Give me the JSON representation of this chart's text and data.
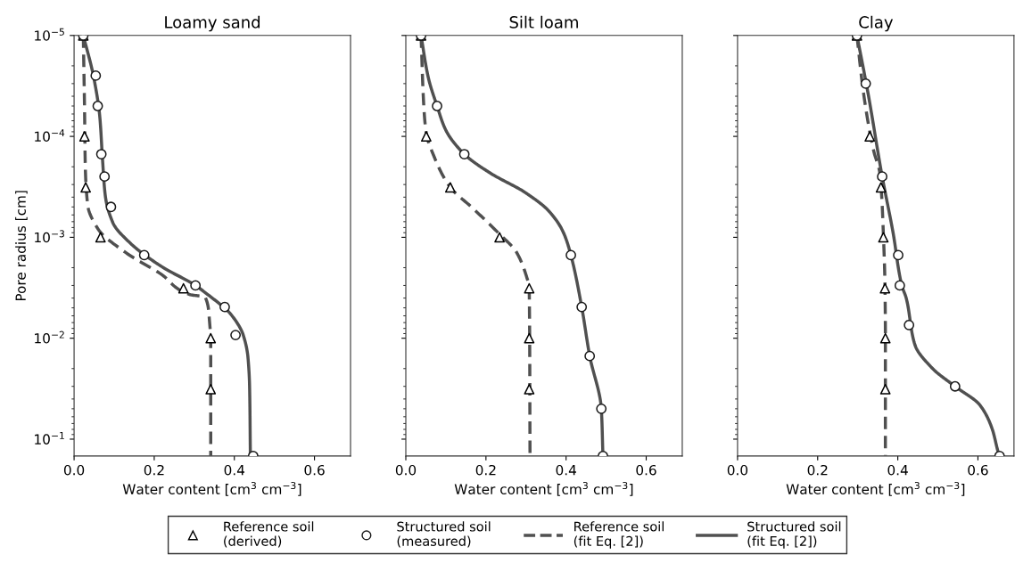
{
  "chart_data": [
    {
      "type": "line",
      "title": "Loamy sand",
      "xlabel": "Water content [cm$^{3}$ cm$^{−3}$]",
      "ylabel": "Pore radius [cm]",
      "log": "y",
      "legend": "bottom",
      "xlim": [
        0,
        0.69
      ],
      "xticks": [
        {
          "value": 0,
          "label": "0.0"
        },
        {
          "value": 0.2,
          "label": "0.2"
        },
        {
          "value": 0.4,
          "label": "0.4"
        },
        {
          "value": 0.6,
          "label": "0.6"
        }
      ],
      "ylim": [
        0.147,
        1e-05
      ],
      "yticks": [
        {
          "value": 1e-05,
          "label": "10$^{−5}$"
        },
        {
          "value": 0.0001,
          "label": "10$^{−4}$"
        },
        {
          "value": 0.001,
          "label": "10$^{−3}$"
        },
        {
          "value": 0.01,
          "label": "10$^{−2}$"
        },
        {
          "value": 0.1,
          "label": "10$^{−1}$"
        }
      ],
      "series": [
        {
          "name": "Reference soil\n(derived)",
          "type": "scatter",
          "marker": "triangle",
          "color": "#000000",
          "x": [
            0.023,
            0.026,
            0.029,
            0.066,
            0.273,
            0.341,
            0.341
          ],
          "values": [
            1e-05,
            0.0001,
            0.00032,
            0.001,
            0.0032,
            0.01,
            0.032
          ]
        },
        {
          "name": "Structured soil\n(measured)",
          "type": "scatter",
          "marker": "circle",
          "color": "#1a1a1a",
          "x": [
            0.023,
            0.054,
            0.059,
            0.068,
            0.076,
            0.092,
            0.175,
            0.303,
            0.376,
            0.403,
            0.447
          ],
          "values": [
            1e-05,
            2.5e-05,
            5e-05,
            0.00015,
            0.00025,
            0.0005,
            0.0015,
            0.003,
            0.0049,
            0.0093,
            0.147
          ]
        },
        {
          "name": "Reference soil\n(fit Eq. [2])",
          "type": "line",
          "line_style": "dashed",
          "color": "#505050",
          "x": [
            0.023,
            0.026,
            0.028,
            0.034,
            0.06,
            0.127,
            0.216,
            0.29,
            0.327,
            0.338,
            0.341,
            0.341
          ],
          "values": [
            1e-05,
            5.1e-05,
            0.0002,
            0.00048,
            0.00083,
            0.0014,
            0.0023,
            0.0037,
            0.0039,
            0.0068,
            0.011,
            0.147
          ]
        },
        {
          "name": "Structured soil\n(fit Eq. [2])",
          "type": "line",
          "line_style": "solid",
          "color": "#505050",
          "x": [
            0.023,
            0.049,
            0.064,
            0.071,
            0.078,
            0.097,
            0.141,
            0.223,
            0.297,
            0.334,
            0.393,
            0.423,
            0.434,
            0.438,
            0.44
          ],
          "values": [
            1e-05,
            2.6e-05,
            6.3e-05,
            0.00017,
            0.00039,
            0.00072,
            0.00115,
            0.002,
            0.0029,
            0.0037,
            0.0059,
            0.0095,
            0.0155,
            0.03,
            0.147
          ]
        }
      ]
    },
    {
      "type": "line",
      "title": "Silt loam",
      "xlabel": "Water content [cm$^{3}$ cm$^{−3}$]",
      "log": "y",
      "tick_labels": "x",
      "xlim": [
        0,
        0.69
      ],
      "xticks": [
        {
          "value": 0,
          "label": "0.0"
        },
        {
          "value": 0.2,
          "label": "0.2"
        },
        {
          "value": 0.4,
          "label": "0.4"
        },
        {
          "value": 0.6,
          "label": "0.6"
        }
      ],
      "ylim": [
        0.147,
        1e-05
      ],
      "yticks": [
        {
          "value": 1e-05,
          "label": null
        },
        {
          "value": 0.0001,
          "label": null
        },
        {
          "value": 0.001,
          "label": null
        },
        {
          "value": 0.01,
          "label": null
        },
        {
          "value": 0.1,
          "label": null
        }
      ],
      "series": [
        {
          "type": "scatter",
          "marker": "triangle",
          "color": "#000000",
          "x": [
            0.038,
            0.051,
            0.111,
            0.234,
            0.308,
            0.308,
            0.308
          ],
          "values": [
            1e-05,
            0.0001,
            0.00032,
            0.001,
            0.0032,
            0.01,
            0.032
          ]
        },
        {
          "type": "scatter",
          "marker": "circle",
          "color": "#1a1a1a",
          "x": [
            0.038,
            0.078,
            0.146,
            0.412,
            0.439,
            0.459,
            0.488,
            0.492
          ],
          "values": [
            1e-05,
            5e-05,
            0.00015,
            0.0015,
            0.0049,
            0.015,
            0.05,
            0.147
          ]
        },
        {
          "type": "line",
          "line_style": "dashed",
          "color": "#505050",
          "x": [
            0.038,
            0.045,
            0.051,
            0.071,
            0.111,
            0.166,
            0.234,
            0.276,
            0.302,
            0.308,
            0.31
          ],
          "values": [
            1e-05,
            5.1e-05,
            9.3e-05,
            0.00016,
            0.00032,
            0.00051,
            0.00093,
            0.0014,
            0.0025,
            0.0031,
            0.147
          ]
        },
        {
          "type": "line",
          "line_style": "solid",
          "color": "#505050",
          "x": [
            0.038,
            0.056,
            0.078,
            0.1,
            0.146,
            0.21,
            0.298,
            0.357,
            0.393,
            0.412,
            0.439,
            0.459,
            0.488,
            0.492
          ],
          "values": [
            1e-05,
            2.6e-05,
            5e-05,
            8.7e-05,
            0.00015,
            0.00023,
            0.00036,
            0.00055,
            0.00089,
            0.0015,
            0.0049,
            0.015,
            0.05,
            0.147
          ]
        }
      ]
    },
    {
      "type": "line",
      "title": "Clay",
      "xlabel": "Water content [cm$^{3}$ cm$^{−3}$]",
      "log": "y",
      "tick_labels": "x",
      "xlim": [
        0,
        0.69
      ],
      "xticks": [
        {
          "value": 0,
          "label": "0.0"
        },
        {
          "value": 0.2,
          "label": "0.2"
        },
        {
          "value": 0.4,
          "label": "0.4"
        },
        {
          "value": 0.6,
          "label": "0.6"
        }
      ],
      "ylim": [
        0.147,
        1e-05
      ],
      "yticks": [
        {
          "value": 1e-05,
          "label": null
        },
        {
          "value": 0.0001,
          "label": null
        },
        {
          "value": 0.001,
          "label": null
        },
        {
          "value": 0.01,
          "label": null
        },
        {
          "value": 0.1,
          "label": null
        }
      ],
      "series": [
        {
          "type": "scatter",
          "marker": "triangle",
          "color": "#000000",
          "x": [
            0.298,
            0.33,
            0.358,
            0.364,
            0.368,
            0.369,
            0.369
          ],
          "values": [
            1e-05,
            0.0001,
            0.00032,
            0.001,
            0.0032,
            0.01,
            0.032
          ]
        },
        {
          "type": "scatter",
          "marker": "circle",
          "color": "#1a1a1a",
          "x": [
            0.298,
            0.32,
            0.361,
            0.401,
            0.405,
            0.428,
            0.543,
            0.654
          ],
          "values": [
            1e-05,
            3e-05,
            0.00025,
            0.0015,
            0.003,
            0.0074,
            0.03,
            0.147
          ]
        },
        {
          "type": "line",
          "line_style": "dashed",
          "color": "#505050",
          "x": [
            0.298,
            0.314,
            0.34,
            0.355,
            0.364,
            0.368,
            0.369,
            0.369
          ],
          "values": [
            1e-05,
            3.6e-05,
            0.00014,
            0.00023,
            0.00093,
            0.0031,
            0.0093,
            0.147
          ]
        },
        {
          "type": "line",
          "line_style": "solid",
          "color": "#505050",
          "x": [
            0.298,
            0.325,
            0.361,
            0.388,
            0.41,
            0.421,
            0.443,
            0.487,
            0.543,
            0.605,
            0.635,
            0.652,
            0.654
          ],
          "values": [
            1e-05,
            3.6e-05,
            0.00025,
            0.00089,
            0.003,
            0.004,
            0.0117,
            0.02,
            0.03,
            0.046,
            0.078,
            0.14,
            0.147
          ]
        }
      ]
    }
  ]
}
